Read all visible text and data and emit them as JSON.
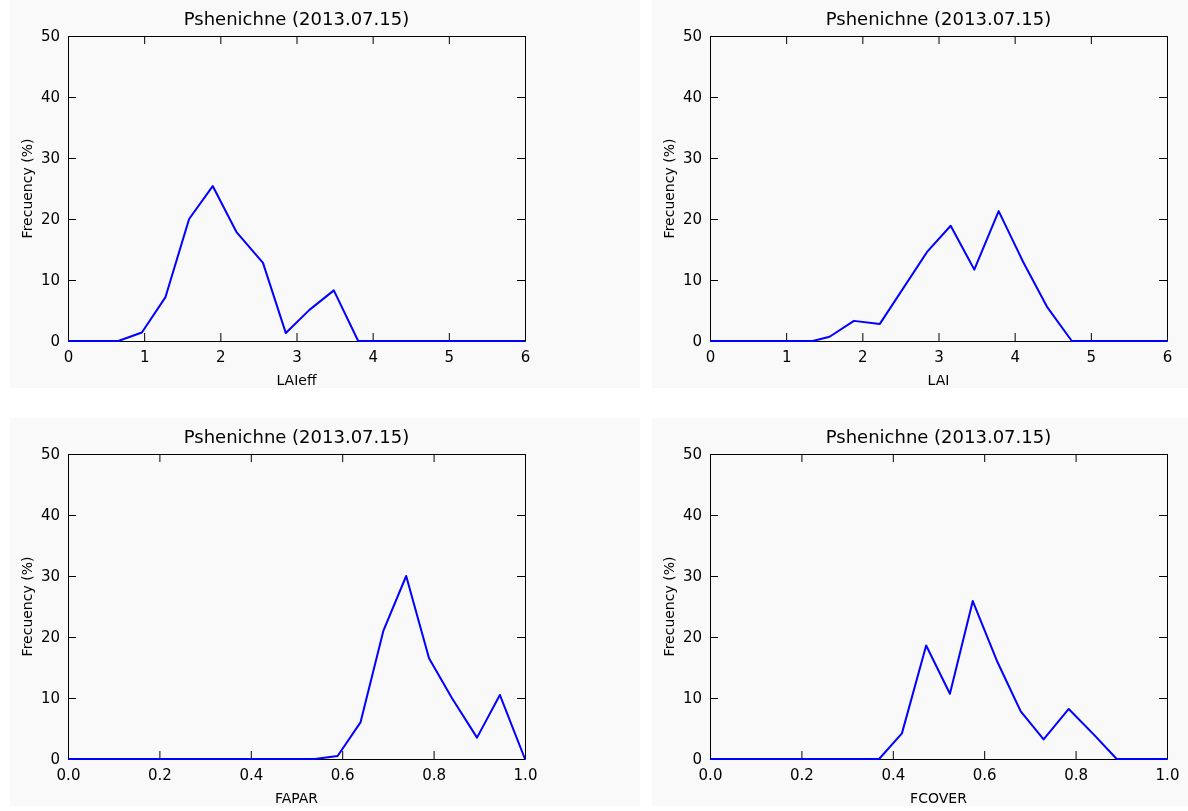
{
  "chart_data": [
    {
      "type": "line",
      "title": "Pshenichne (2013.07.15)",
      "xlabel": "LAIeff",
      "ylabel": "Frecuency (%)",
      "xlim": [
        0,
        6
      ],
      "ylim": [
        0,
        50
      ],
      "xticks": [
        0,
        1,
        2,
        3,
        4,
        5,
        6
      ],
      "yticks": [
        0,
        10,
        20,
        30,
        40,
        50
      ],
      "series": [
        {
          "color": "#0000ff",
          "x": [
            0,
            0.66,
            0.97,
            1.28,
            1.59,
            1.9,
            2.21,
            2.56,
            2.86,
            3.17,
            3.49,
            3.81,
            6
          ],
          "values": [
            0,
            0,
            1.4,
            7.2,
            20,
            25.4,
            17.9,
            12.8,
            1.3,
            5.1,
            8.3,
            0,
            0
          ]
        }
      ]
    },
    {
      "type": "line",
      "title": "Pshenichne (2013.07.15)",
      "xlabel": "LAI",
      "ylabel": "Frecuency (%)",
      "xlim": [
        0,
        6
      ],
      "ylim": [
        0,
        50
      ],
      "xticks": [
        0,
        1,
        2,
        3,
        4,
        5,
        6
      ],
      "yticks": [
        0,
        10,
        20,
        30,
        40,
        50
      ],
      "series": [
        {
          "color": "#0000ff",
          "x": [
            0,
            1.35,
            1.57,
            1.89,
            2.23,
            2.85,
            3.16,
            3.47,
            3.79,
            4.11,
            4.43,
            4.75,
            6
          ],
          "values": [
            0,
            0,
            0.7,
            3.3,
            2.8,
            14.6,
            18.9,
            11.7,
            21.3,
            13,
            5.5,
            0,
            0
          ]
        }
      ]
    },
    {
      "type": "line",
      "title": "Pshenichne (2013.07.15)",
      "xlabel": "FAPAR",
      "ylabel": "Frecuency (%)",
      "xlim": [
        0,
        1
      ],
      "ylim": [
        0,
        50
      ],
      "xticks": [
        {
          "value": 0,
          "label": "0.0"
        },
        {
          "value": 0.2,
          "label": "0.2"
        },
        {
          "value": 0.4,
          "label": "0.4"
        },
        {
          "value": 0.6,
          "label": "0.6"
        },
        {
          "value": 0.8,
          "label": "0.8"
        },
        {
          "value": 1,
          "label": "1.0"
        }
      ],
      "yticks": [
        0,
        10,
        20,
        30,
        40,
        50
      ],
      "series": [
        {
          "color": "#0000ff",
          "x": [
            0,
            0.54,
            0.59,
            0.64,
            0.69,
            0.74,
            0.79,
            0.84,
            0.895,
            0.945,
            1
          ],
          "values": [
            0,
            0,
            0.5,
            6,
            21,
            30,
            16.5,
            10,
            3.5,
            10.5,
            0
          ]
        }
      ]
    },
    {
      "type": "line",
      "title": "Pshenichne (2013.07.15)",
      "xlabel": "FCOVER",
      "ylabel": "Frecuency (%)",
      "xlim": [
        0,
        1
      ],
      "ylim": [
        0,
        50
      ],
      "xticks": [
        {
          "value": 0,
          "label": "0.0"
        },
        {
          "value": 0.2,
          "label": "0.2"
        },
        {
          "value": 0.4,
          "label": "0.4"
        },
        {
          "value": 0.6,
          "label": "0.6"
        },
        {
          "value": 0.8,
          "label": "0.8"
        },
        {
          "value": 1,
          "label": "1.0"
        }
      ],
      "yticks": [
        0,
        10,
        20,
        30,
        40,
        50
      ],
      "series": [
        {
          "color": "#0000ff",
          "x": [
            0,
            0.37,
            0.42,
            0.473,
            0.525,
            0.575,
            0.629,
            0.68,
            0.73,
            0.785,
            0.84,
            0.89,
            1
          ],
          "values": [
            0,
            0,
            4.2,
            18.6,
            10.7,
            25.9,
            15.9,
            7.8,
            3.2,
            8.2,
            4,
            0,
            0
          ]
        }
      ]
    }
  ]
}
